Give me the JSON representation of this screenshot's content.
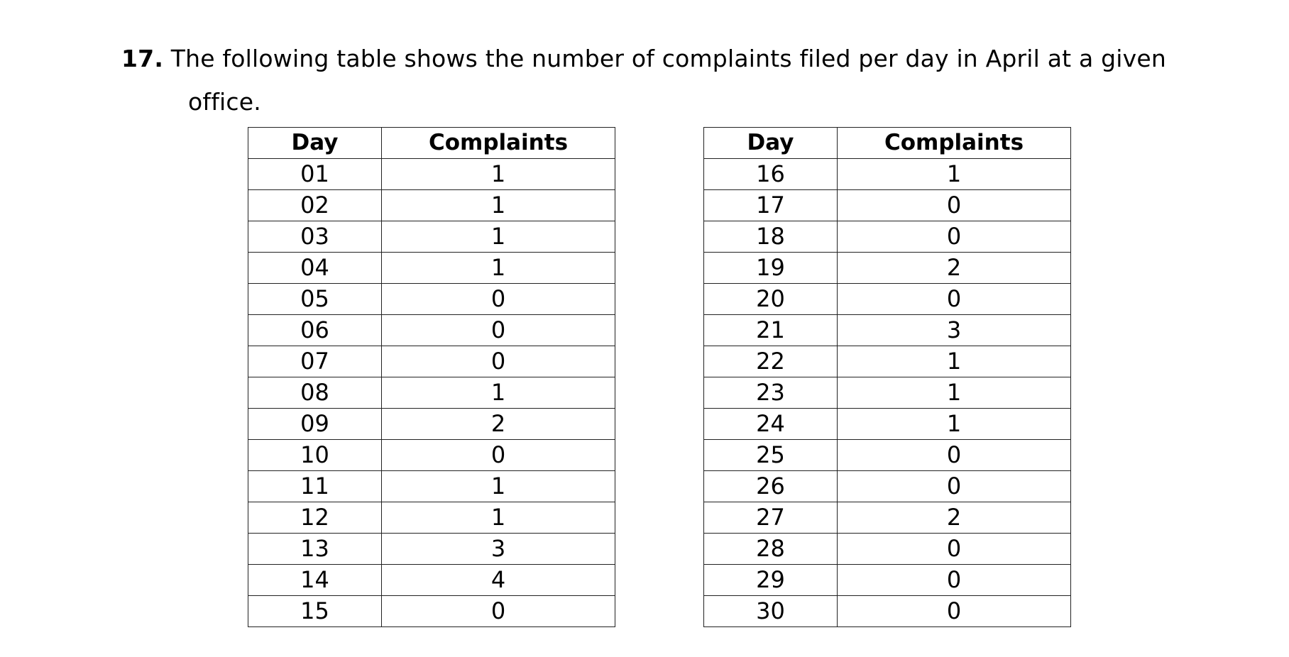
{
  "question": {
    "number": "17.",
    "text_line1": " The following table shows the number of complaints filed per day in April at a given",
    "text_line2": "office."
  },
  "tables": [
    {
      "headers": [
        "Day",
        "Complaints"
      ],
      "rows": [
        [
          "01",
          "1"
        ],
        [
          "02",
          "1"
        ],
        [
          "03",
          "1"
        ],
        [
          "04",
          "1"
        ],
        [
          "05",
          "0"
        ],
        [
          "06",
          "0"
        ],
        [
          "07",
          "0"
        ],
        [
          "08",
          "1"
        ],
        [
          "09",
          "2"
        ],
        [
          "10",
          "0"
        ],
        [
          "11",
          "1"
        ],
        [
          "12",
          "1"
        ],
        [
          "13",
          "3"
        ],
        [
          "14",
          "4"
        ],
        [
          "15",
          "0"
        ]
      ]
    },
    {
      "headers": [
        "Day",
        "Complaints"
      ],
      "rows": [
        [
          "16",
          "1"
        ],
        [
          "17",
          "0"
        ],
        [
          "18",
          "0"
        ],
        [
          "19",
          "2"
        ],
        [
          "20",
          "0"
        ],
        [
          "21",
          "3"
        ],
        [
          "22",
          "1"
        ],
        [
          "23",
          "1"
        ],
        [
          "24",
          "1"
        ],
        [
          "25",
          "0"
        ],
        [
          "26",
          "0"
        ],
        [
          "27",
          "2"
        ],
        [
          "28",
          "0"
        ],
        [
          "29",
          "0"
        ],
        [
          "30",
          "0"
        ]
      ]
    }
  ]
}
